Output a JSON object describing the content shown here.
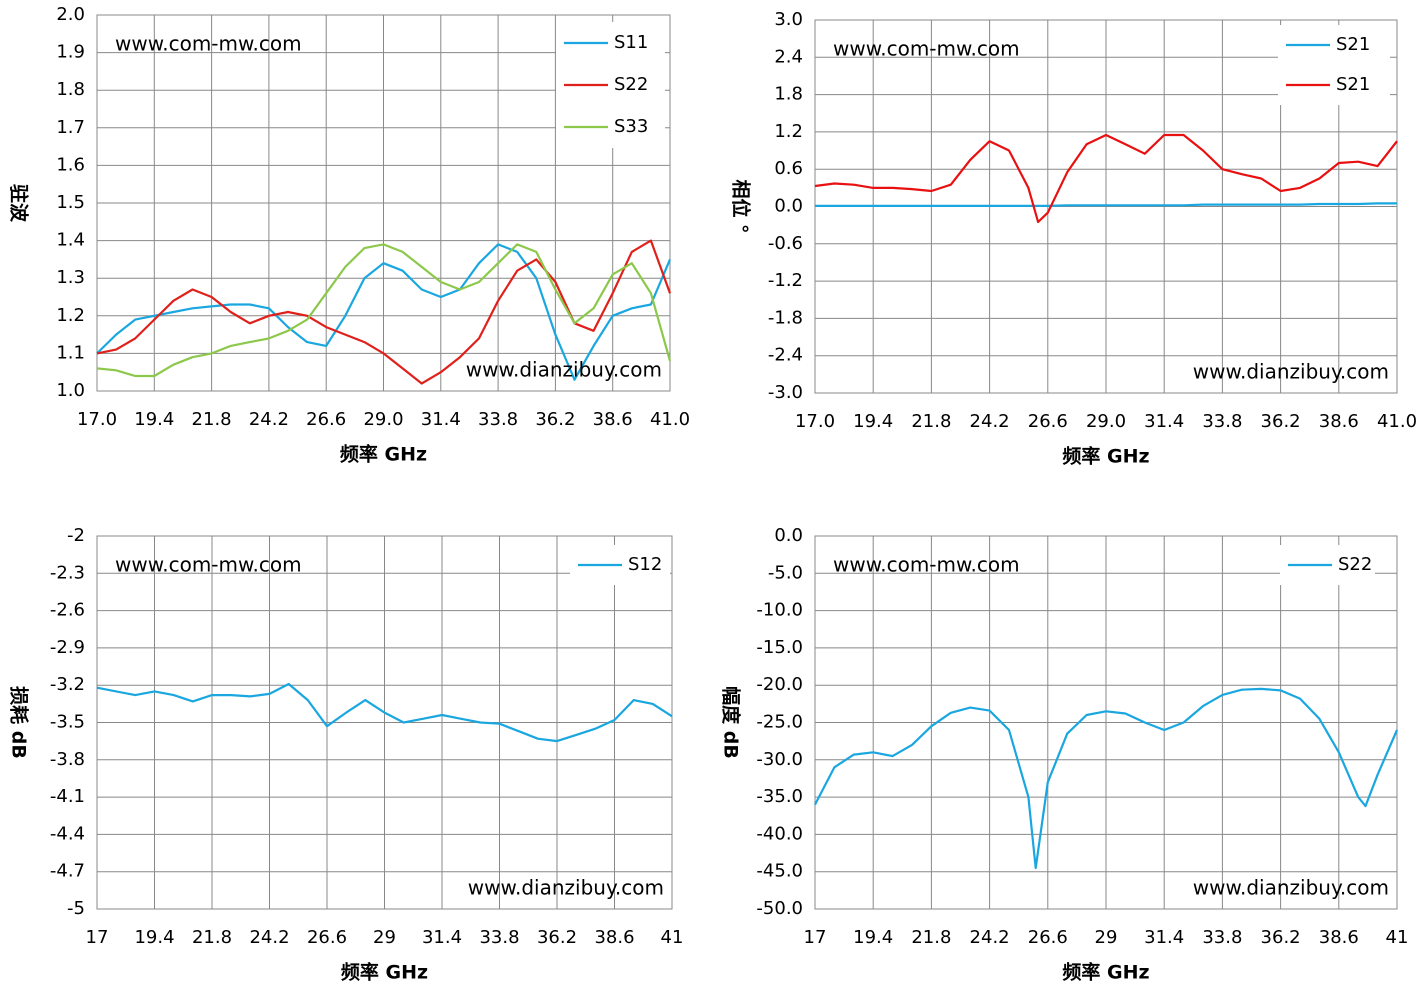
{
  "chart_data": [
    {
      "type": "line",
      "ylabel": "驻波",
      "xlabel": "频率 GHz",
      "annotations": [
        "www.com-mw.com",
        "www.dianzibuy.com"
      ],
      "x": [
        17,
        17.8,
        18.6,
        19.4,
        20.2,
        21,
        21.8,
        22.6,
        23.4,
        24.2,
        25,
        25.8,
        26.6,
        27.4,
        28.2,
        29,
        29.8,
        30.6,
        31.4,
        32.2,
        33,
        33.8,
        34.6,
        35.4,
        36.2,
        37,
        37.8,
        38.6,
        39.4,
        40.2,
        41
      ],
      "series": [
        {
          "name": "S11",
          "color": "#1aa7e0",
          "values": [
            1.1,
            1.15,
            1.19,
            1.2,
            1.21,
            1.22,
            1.225,
            1.23,
            1.23,
            1.22,
            1.17,
            1.13,
            1.12,
            1.2,
            1.3,
            1.34,
            1.32,
            1.27,
            1.25,
            1.27,
            1.34,
            1.39,
            1.37,
            1.3,
            1.15,
            1.03,
            1.12,
            1.2,
            1.22,
            1.23,
            1.35
          ]
        },
        {
          "name": "S22",
          "color": "#e0201a",
          "values": [
            1.1,
            1.11,
            1.14,
            1.19,
            1.24,
            1.27,
            1.25,
            1.21,
            1.18,
            1.2,
            1.21,
            1.2,
            1.17,
            1.15,
            1.13,
            1.1,
            1.06,
            1.02,
            1.05,
            1.09,
            1.14,
            1.24,
            1.32,
            1.35,
            1.29,
            1.18,
            1.16,
            1.26,
            1.37,
            1.4,
            1.26
          ]
        },
        {
          "name": "S33",
          "color": "#8cc84b",
          "values": [
            1.06,
            1.055,
            1.04,
            1.04,
            1.07,
            1.09,
            1.1,
            1.12,
            1.13,
            1.14,
            1.16,
            1.19,
            1.26,
            1.33,
            1.38,
            1.39,
            1.37,
            1.33,
            1.29,
            1.27,
            1.29,
            1.34,
            1.39,
            1.37,
            1.27,
            1.18,
            1.22,
            1.31,
            1.34,
            1.26,
            1.08
          ]
        }
      ],
      "xlim": [
        17,
        41
      ],
      "xticks": [
        {
          "value": 17,
          "label": "17.0"
        },
        19.4,
        21.8,
        24.2,
        26.6,
        {
          "value": 29,
          "label": "29.0"
        },
        31.4,
        33.8,
        36.2,
        38.6,
        {
          "value": 41,
          "label": "41.0"
        }
      ],
      "ylim": [
        1,
        2
      ],
      "yticks": [
        {
          "value": 1,
          "label": "1.0"
        },
        1.1,
        1.2,
        1.3,
        1.4,
        1.5,
        1.6,
        1.7,
        1.8,
        1.9,
        {
          "value": 2,
          "label": "2.0"
        }
      ],
      "grid": true
    },
    {
      "type": "line",
      "ylabel": "相位 °",
      "xlabel": "频率 GHz",
      "annotations": [
        "www.com-mw.com",
        "www.dianzibuy.com"
      ],
      "x": [
        17,
        17.8,
        18.6,
        19.4,
        20.2,
        21,
        21.8,
        22.6,
        23.4,
        24.2,
        25,
        25.8,
        26.2,
        26.6,
        27.4,
        28.2,
        29,
        29.8,
        30.6,
        31.4,
        32.2,
        33,
        33.8,
        34.6,
        35.4,
        36.2,
        37,
        37.8,
        38.6,
        39.4,
        40.2,
        41
      ],
      "series": [
        {
          "name": "S21",
          "color": "#1aa7e0",
          "values": [
            0.01,
            0.01,
            0.01,
            0.01,
            0.01,
            0.01,
            0.01,
            0.01,
            0.01,
            0.01,
            0.01,
            0.01,
            0.01,
            0.01,
            0.02,
            0.02,
            0.02,
            0.02,
            0.02,
            0.02,
            0.02,
            0.03,
            0.03,
            0.03,
            0.03,
            0.03,
            0.03,
            0.04,
            0.04,
            0.04,
            0.05,
            0.05
          ]
        },
        {
          "name": "S21",
          "color": "#e81010",
          "values": [
            0.33,
            0.37,
            0.35,
            0.3,
            0.3,
            0.28,
            0.25,
            0.35,
            0.75,
            1.05,
            0.9,
            0.3,
            -0.25,
            -0.1,
            0.55,
            1.0,
            1.15,
            1.0,
            0.85,
            1.15,
            1.15,
            0.9,
            0.6,
            0.52,
            0.45,
            0.25,
            0.3,
            0.45,
            0.7,
            0.72,
            0.65,
            1.05
          ]
        }
      ],
      "xlim": [
        17,
        41
      ],
      "xticks": [
        {
          "value": 17,
          "label": "17.0"
        },
        19.4,
        21.8,
        24.2,
        26.6,
        {
          "value": 29,
          "label": "29.0"
        },
        31.4,
        33.8,
        36.2,
        38.6,
        {
          "value": 41,
          "label": "41.0"
        }
      ],
      "ylim": [
        -3,
        3
      ],
      "yticks": [
        {
          "value": -3,
          "label": "-3.0"
        },
        -2.4,
        -1.8,
        -1.2,
        -0.6,
        {
          "value": 0,
          "label": "0.0"
        },
        0.6,
        1.2,
        1.8,
        2.4,
        {
          "value": 3,
          "label": "3.0"
        }
      ],
      "grid": true
    },
    {
      "type": "line",
      "ylabel": "损耗 dB",
      "xlabel": "频率 GHz",
      "annotations": [
        "www.com-mw.com",
        "www.dianzibuy.com"
      ],
      "x": [
        17,
        17.8,
        18.6,
        19.4,
        20.2,
        21,
        21.8,
        22.6,
        23.4,
        24.2,
        25,
        25.8,
        26.6,
        27.4,
        28.2,
        29,
        29.8,
        30.6,
        31.4,
        32.2,
        33,
        33.8,
        34.6,
        35.4,
        36.2,
        37,
        37.8,
        38.6,
        39.4,
        40.2,
        41
      ],
      "series": [
        {
          "name": "S12",
          "color": "#1aa7e0",
          "values": [
            -3.22,
            -3.25,
            -3.28,
            -3.25,
            -3.28,
            -3.33,
            -3.28,
            -3.28,
            -3.29,
            -3.27,
            -3.19,
            -3.32,
            -3.53,
            -3.42,
            -3.32,
            -3.42,
            -3.5,
            -3.47,
            -3.44,
            -3.47,
            -3.5,
            -3.51,
            -3.57,
            -3.63,
            -3.65,
            -3.6,
            -3.55,
            -3.48,
            -3.32,
            -3.35,
            -3.45
          ]
        }
      ],
      "xlim": [
        17,
        41
      ],
      "xticks": [
        17,
        19.4,
        21.8,
        24.2,
        26.6,
        29,
        31.4,
        33.8,
        36.2,
        38.6,
        41
      ],
      "ylim": [
        -5,
        -2
      ],
      "yticks": [
        -5,
        -4.7,
        -4.4,
        -4.1,
        -3.8,
        -3.5,
        -3.2,
        -2.9,
        -2.6,
        -2.3,
        -2
      ],
      "grid": true
    },
    {
      "type": "line",
      "ylabel": "幅度 dB",
      "xlabel": "频率 GHz",
      "annotations": [
        "www.com-mw.com",
        "www.dianzibuy.com"
      ],
      "x": [
        17,
        17.8,
        18.6,
        19.4,
        20.2,
        21,
        21.8,
        22.6,
        23.4,
        24.2,
        25,
        25.8,
        26.1,
        26.6,
        27.4,
        28.2,
        29,
        29.8,
        30.6,
        31.4,
        32.2,
        33,
        33.8,
        34.6,
        35.4,
        36.2,
        37,
        37.8,
        38.6,
        39.4,
        39.7,
        40.2,
        41
      ],
      "series": [
        {
          "name": "S22",
          "color": "#1aa7e0",
          "values": [
            -36,
            -31,
            -29.3,
            -29,
            -29.5,
            -28,
            -25.5,
            -23.7,
            -23,
            -23.4,
            -26,
            -35,
            -44.5,
            -33,
            -26.5,
            -24,
            -23.5,
            -23.8,
            -25,
            -26,
            -25,
            -22.8,
            -21.3,
            -20.6,
            -20.5,
            -20.7,
            -21.8,
            -24.5,
            -29,
            -35,
            -36.2,
            -32,
            -26
          ]
        }
      ],
      "xlim": [
        17,
        41
      ],
      "xticks": [
        17,
        19.4,
        21.8,
        24.2,
        26.6,
        29,
        31.4,
        33.8,
        36.2,
        38.6,
        41
      ],
      "ylim": [
        -50,
        0
      ],
      "yticks": [
        {
          "value": -50,
          "label": "-50.0"
        },
        {
          "value": -45,
          "label": "-45.0"
        },
        {
          "value": -40,
          "label": "-40.0"
        },
        {
          "value": -35,
          "label": "-35.0"
        },
        {
          "value": -30,
          "label": "-30.0"
        },
        {
          "value": -25,
          "label": "-25.0"
        },
        {
          "value": -20,
          "label": "-20.0"
        },
        {
          "value": -15,
          "label": "-15.0"
        },
        {
          "value": -10,
          "label": "-10.0"
        },
        {
          "value": -5,
          "label": "-5.0"
        },
        {
          "value": 0,
          "label": "0.0"
        }
      ],
      "grid": true
    }
  ]
}
